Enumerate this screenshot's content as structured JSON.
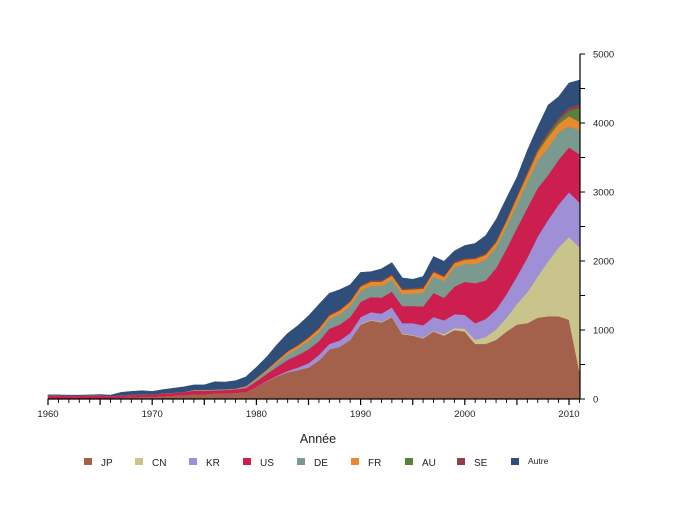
{
  "chart_data": {
    "type": "area",
    "stacked": true,
    "title": "",
    "xlabel": "Année",
    "ylabel": "",
    "xlim": [
      1960,
      2011
    ],
    "ylim": [
      0,
      5000
    ],
    "x_ticks_major": [
      1960,
      1970,
      1980,
      1990,
      2000,
      2010
    ],
    "x_tick_labels": [
      "1960",
      "1970",
      "1980",
      "1990",
      "2000",
      "2010"
    ],
    "y_ticks": [
      0,
      1000,
      2000,
      3000,
      4000,
      5000
    ],
    "y_tick_labels": [
      "0",
      "1000",
      "2000",
      "3000",
      "4000",
      "5000"
    ],
    "y_axis_side": "right",
    "grid": false,
    "legend_position": "bottom",
    "x": [
      1960,
      1961,
      1962,
      1963,
      1964,
      1965,
      1966,
      1967,
      1968,
      1969,
      1970,
      1971,
      1972,
      1973,
      1974,
      1975,
      1976,
      1977,
      1978,
      1979,
      1980,
      1981,
      1982,
      1983,
      1984,
      1985,
      1986,
      1987,
      1988,
      1989,
      1990,
      1991,
      1992,
      1993,
      1994,
      1995,
      1996,
      1997,
      1998,
      1999,
      2000,
      2001,
      2002,
      2003,
      2004,
      2005,
      2006,
      2007,
      2008,
      2009,
      2010,
      2011
    ],
    "series": [
      {
        "name": "JP",
        "color": "#a3604a",
        "values": [
          10,
          10,
          10,
          10,
          10,
          10,
          10,
          20,
          25,
          30,
          30,
          40,
          50,
          55,
          70,
          70,
          80,
          80,
          90,
          100,
          180,
          260,
          330,
          390,
          420,
          460,
          560,
          720,
          760,
          860,
          1080,
          1140,
          1110,
          1190,
          940,
          920,
          880,
          980,
          920,
          1000,
          980,
          800,
          800,
          860,
          980,
          1080,
          1100,
          1180,
          1200,
          1200,
          1150,
          400
        ]
      },
      {
        "name": "CN",
        "color": "#c9c48c",
        "values": [
          0,
          0,
          0,
          0,
          0,
          0,
          0,
          0,
          0,
          0,
          0,
          0,
          0,
          0,
          0,
          0,
          0,
          0,
          0,
          0,
          0,
          0,
          0,
          0,
          0,
          0,
          0,
          0,
          0,
          0,
          10,
          10,
          10,
          10,
          10,
          10,
          10,
          10,
          20,
          30,
          40,
          60,
          100,
          150,
          200,
          300,
          450,
          600,
          800,
          1000,
          1200,
          1800
        ]
      },
      {
        "name": "KR",
        "color": "#9e8fd6",
        "values": [
          0,
          0,
          0,
          0,
          0,
          0,
          0,
          0,
          0,
          0,
          0,
          0,
          0,
          0,
          0,
          0,
          0,
          0,
          0,
          0,
          0,
          5,
          10,
          20,
          40,
          60,
          80,
          80,
          90,
          100,
          100,
          110,
          120,
          130,
          150,
          170,
          180,
          200,
          200,
          200,
          200,
          240,
          260,
          290,
          340,
          400,
          500,
          580,
          600,
          620,
          650,
          650
        ]
      },
      {
        "name": "US",
        "color": "#cc1f4f",
        "values": [
          40,
          40,
          35,
          35,
          40,
          40,
          30,
          30,
          35,
          35,
          35,
          40,
          40,
          45,
          50,
          50,
          45,
          50,
          50,
          60,
          80,
          100,
          130,
          160,
          180,
          200,
          200,
          220,
          230,
          230,
          220,
          220,
          230,
          230,
          250,
          250,
          270,
          350,
          330,
          400,
          480,
          580,
          560,
          600,
          660,
          700,
          720,
          700,
          650,
          650,
          650,
          700
        ]
      },
      {
        "name": "DE",
        "color": "#7a9a90",
        "values": [
          5,
          5,
          5,
          5,
          5,
          5,
          5,
          5,
          5,
          5,
          5,
          5,
          5,
          5,
          10,
          10,
          10,
          10,
          10,
          20,
          30,
          40,
          60,
          80,
          100,
          120,
          130,
          140,
          150,
          160,
          160,
          160,
          170,
          170,
          170,
          180,
          200,
          240,
          240,
          280,
          260,
          280,
          300,
          300,
          320,
          340,
          380,
          400,
          400,
          400,
          300,
          350
        ]
      },
      {
        "name": "FR",
        "color": "#e8892a",
        "values": [
          0,
          0,
          0,
          0,
          0,
          0,
          0,
          0,
          0,
          0,
          0,
          0,
          0,
          0,
          5,
          5,
          5,
          5,
          5,
          10,
          15,
          20,
          30,
          40,
          40,
          50,
          50,
          50,
          55,
          60,
          60,
          60,
          60,
          60,
          60,
          60,
          60,
          60,
          60,
          60,
          60,
          70,
          70,
          70,
          80,
          100,
          100,
          120,
          150,
          120,
          150,
          120
        ]
      },
      {
        "name": "AU",
        "color": "#5d7f3e",
        "values": [
          0,
          0,
          0,
          0,
          0,
          0,
          0,
          0,
          0,
          0,
          0,
          0,
          0,
          0,
          0,
          0,
          0,
          0,
          0,
          0,
          0,
          0,
          0,
          0,
          0,
          0,
          0,
          0,
          0,
          5,
          5,
          5,
          5,
          5,
          5,
          5,
          5,
          5,
          5,
          5,
          5,
          5,
          5,
          10,
          10,
          10,
          20,
          30,
          40,
          50,
          80,
          200
        ]
      },
      {
        "name": "SE",
        "color": "#8e3f4f",
        "values": [
          0,
          0,
          0,
          0,
          0,
          0,
          0,
          0,
          0,
          0,
          0,
          0,
          0,
          0,
          0,
          0,
          0,
          0,
          0,
          0,
          5,
          5,
          10,
          10,
          15,
          15,
          20,
          20,
          20,
          20,
          20,
          20,
          20,
          20,
          20,
          20,
          20,
          20,
          20,
          20,
          20,
          20,
          20,
          20,
          20,
          30,
          30,
          30,
          40,
          40,
          50,
          50
        ]
      },
      {
        "name": "Autre",
        "color": "#2f4f7a",
        "values": [
          5,
          5,
          5,
          5,
          5,
          10,
          10,
          40,
          45,
          50,
          40,
          50,
          60,
          70,
          70,
          70,
          110,
          100,
          110,
          130,
          150,
          180,
          220,
          250,
          270,
          300,
          330,
          300,
          280,
          220,
          180,
          120,
          160,
          160,
          150,
          120,
          150,
          200,
          200,
          150,
          180,
          200,
          250,
          300,
          300,
          250,
          300,
          300,
          380,
          300,
          350,
          350
        ]
      }
    ],
    "legend": [
      "JP",
      "CN",
      "KR",
      "US",
      "DE",
      "FR",
      "AU",
      "SE",
      "Autre"
    ]
  }
}
